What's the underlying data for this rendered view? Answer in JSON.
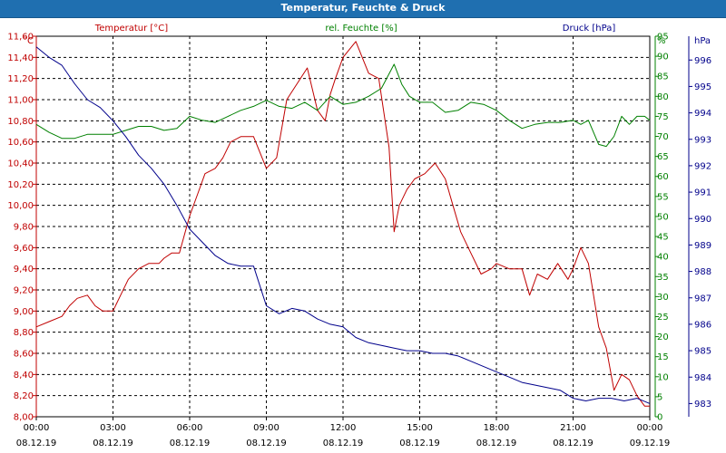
{
  "window": {
    "title": "Temperatur, Feuchte & Druck"
  },
  "colors": {
    "temperature": "#c00000",
    "humidity": "#008000",
    "pressure": "#00008b",
    "grid": "#000000",
    "background": "#ffffff",
    "titlebar": "#1f6fb0"
  },
  "chart_data": {
    "type": "line",
    "title": "Temperatur, Feuchte & Druck",
    "grid": true,
    "x": {
      "ticks": [
        "00:00",
        "03:00",
        "06:00",
        "09:00",
        "12:00",
        "15:00",
        "18:00",
        "21:00",
        "00:00"
      ],
      "dates": [
        "08.12.19",
        "08.12.19",
        "08.12.19",
        "08.12.19",
        "08.12.19",
        "08.12.19",
        "08.12.19",
        "08.12.19",
        "09.12.19"
      ],
      "range_hours": [
        0,
        24
      ]
    },
    "axes": {
      "temperature": {
        "label": "Temperatur [°C]",
        "unit": "°C",
        "ylim": [
          8.0,
          11.6
        ],
        "ticks": [
          "8,00",
          "8,20",
          "8,40",
          "8,60",
          "8,80",
          "9,00",
          "9,20",
          "9,40",
          "9,60",
          "9,80",
          "10,00",
          "10,20",
          "10,40",
          "10,60",
          "10,80",
          "11,00",
          "11,20",
          "11,40",
          "11,60"
        ]
      },
      "humidity": {
        "label": "rel. Feuchte [%]",
        "unit": "%",
        "ylim": [
          0,
          95
        ],
        "ticks": [
          "0",
          "5",
          "10",
          "15",
          "20",
          "25",
          "30",
          "35",
          "40",
          "45",
          "50",
          "55",
          "60",
          "65",
          "70",
          "75",
          "80",
          "85",
          "90",
          "95"
        ]
      },
      "pressure": {
        "label": "Druck [hPa]",
        "unit": "hPa",
        "ylim": [
          982.5,
          996.9
        ],
        "ticks": [
          "983",
          "984",
          "985",
          "986",
          "987",
          "988",
          "989",
          "990",
          "991",
          "992",
          "993",
          "994",
          "995",
          "996"
        ]
      }
    },
    "series": [
      {
        "name": "Temperatur [°C]",
        "axis": "temperature",
        "x": [
          0,
          0.5,
          1,
          1.3,
          1.6,
          2,
          2.3,
          2.6,
          3,
          3.3,
          3.6,
          4,
          4.4,
          4.8,
          5,
          5.3,
          5.6,
          6,
          6.3,
          6.6,
          7,
          7.3,
          7.6,
          8,
          8.5,
          9,
          9.4,
          9.8,
          10.2,
          10.6,
          11,
          11.3,
          11.5,
          11.7,
          12,
          12.5,
          13,
          13.4,
          13.8,
          14,
          14.2,
          14.5,
          14.8,
          15.2,
          15.6,
          16,
          16.3,
          16.6,
          17,
          17.4,
          17.8,
          18,
          18.5,
          19,
          19.3,
          19.6,
          20,
          20.4,
          20.8,
          21,
          21.3,
          21.6,
          22,
          22.3,
          22.6,
          22.9,
          23.2,
          23.5,
          23.8,
          24
        ],
        "values": [
          8.85,
          8.9,
          8.95,
          9.05,
          9.12,
          9.15,
          9.05,
          9.0,
          9.0,
          9.15,
          9.3,
          9.4,
          9.45,
          9.45,
          9.5,
          9.55,
          9.55,
          9.9,
          10.1,
          10.3,
          10.35,
          10.45,
          10.6,
          10.65,
          10.65,
          10.35,
          10.45,
          11.0,
          11.15,
          11.3,
          10.9,
          10.8,
          11.05,
          11.2,
          11.4,
          11.55,
          11.25,
          11.2,
          10.55,
          9.75,
          10.0,
          10.15,
          10.25,
          10.3,
          10.4,
          10.25,
          10.0,
          9.75,
          9.55,
          9.35,
          9.4,
          9.45,
          9.4,
          9.4,
          9.15,
          9.35,
          9.3,
          9.45,
          9.3,
          9.4,
          9.6,
          9.45,
          8.85,
          8.65,
          8.25,
          8.4,
          8.35,
          8.2,
          8.1,
          8.1
        ]
      },
      {
        "name": "rel. Feuchte [%]",
        "axis": "humidity",
        "x": [
          0,
          0.5,
          1,
          1.5,
          2,
          2.5,
          3,
          3.5,
          4,
          4.5,
          5,
          5.5,
          6,
          6.5,
          7,
          7.5,
          8,
          8.5,
          9,
          9.5,
          10,
          10.5,
          11,
          11.5,
          12,
          12.5,
          13,
          13.5,
          14,
          14.3,
          14.6,
          15,
          15.5,
          16,
          16.5,
          17,
          17.5,
          18,
          18.5,
          19,
          19.5,
          20,
          20.5,
          21,
          21.3,
          21.6,
          22,
          22.3,
          22.6,
          22.9,
          23.2,
          23.5,
          23.8,
          24
        ],
        "values": [
          73,
          71,
          69.5,
          69.5,
          70.5,
          70.5,
          70.5,
          71.5,
          72.5,
          72.5,
          71.5,
          72,
          75,
          74,
          73.5,
          75,
          76.5,
          77.5,
          79,
          77.5,
          77,
          78.5,
          76.5,
          80,
          78,
          78.5,
          80,
          82,
          88,
          83,
          80,
          78.5,
          78.5,
          76,
          76.5,
          78.5,
          78,
          76.5,
          74,
          72,
          73,
          73.5,
          73.5,
          74,
          73,
          74,
          68,
          67.5,
          70,
          75,
          73,
          75,
          75,
          74
        ]
      },
      {
        "name": "Druck [hPa]",
        "axis": "pressure",
        "x": [
          0,
          0.5,
          1,
          1.5,
          2,
          2.5,
          3,
          3.5,
          4,
          4.5,
          5,
          5.5,
          6,
          6.5,
          7,
          7.5,
          8,
          8.5,
          9,
          9.5,
          10,
          10.5,
          11,
          11.5,
          12,
          12.5,
          13,
          13.5,
          14,
          14.5,
          15,
          15.5,
          16,
          16.5,
          17,
          17.5,
          18,
          18.5,
          19,
          19.5,
          20,
          20.5,
          21,
          21.5,
          22,
          22.5,
          23,
          23.5,
          24
        ],
        "values": [
          996.5,
          996.1,
          995.8,
          995.1,
          994.5,
          994.2,
          993.7,
          993.1,
          992.4,
          991.9,
          991.3,
          990.5,
          989.6,
          989.1,
          988.6,
          988.3,
          988.2,
          988.2,
          986.7,
          986.4,
          986.6,
          986.5,
          986.2,
          986.0,
          985.9,
          985.5,
          985.3,
          985.2,
          985.1,
          985.0,
          985.0,
          984.9,
          984.9,
          984.8,
          984.6,
          984.4,
          984.2,
          984.0,
          983.8,
          983.7,
          983.6,
          983.5,
          983.2,
          983.1,
          983.2,
          983.2,
          983.1,
          983.2,
          983.0
        ]
      }
    ],
    "legend": "top"
  }
}
